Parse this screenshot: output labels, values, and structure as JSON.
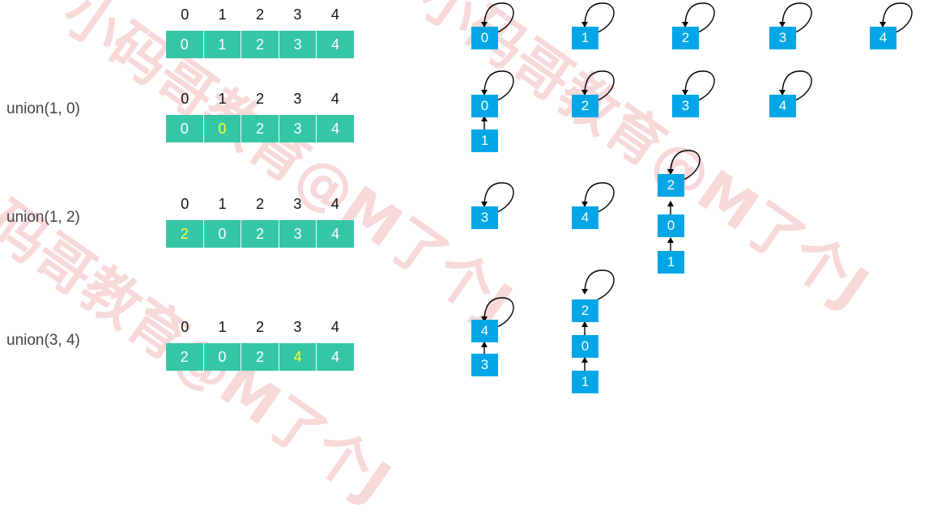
{
  "watermark": "小码哥教育@M了个J",
  "indices": [
    "0",
    "1",
    "2",
    "3",
    "4"
  ],
  "steps": [
    {
      "label": "",
      "values": [
        "0",
        "1",
        "2",
        "3",
        "4"
      ],
      "highlight": -1
    },
    {
      "label": "union(1, 0)",
      "values": [
        "0",
        "0",
        "2",
        "3",
        "4"
      ],
      "highlight": 1
    },
    {
      "label": "union(1, 2)",
      "values": [
        "2",
        "0",
        "2",
        "3",
        "4"
      ],
      "highlight": 0
    },
    {
      "label": "union(3, 4)",
      "values": [
        "2",
        "0",
        "2",
        "4",
        "4"
      ],
      "highlight": 3
    }
  ],
  "colors": {
    "array_cell": "#35c6a6",
    "highlight_text": "#ffff33",
    "node": "#00a6e6"
  }
}
